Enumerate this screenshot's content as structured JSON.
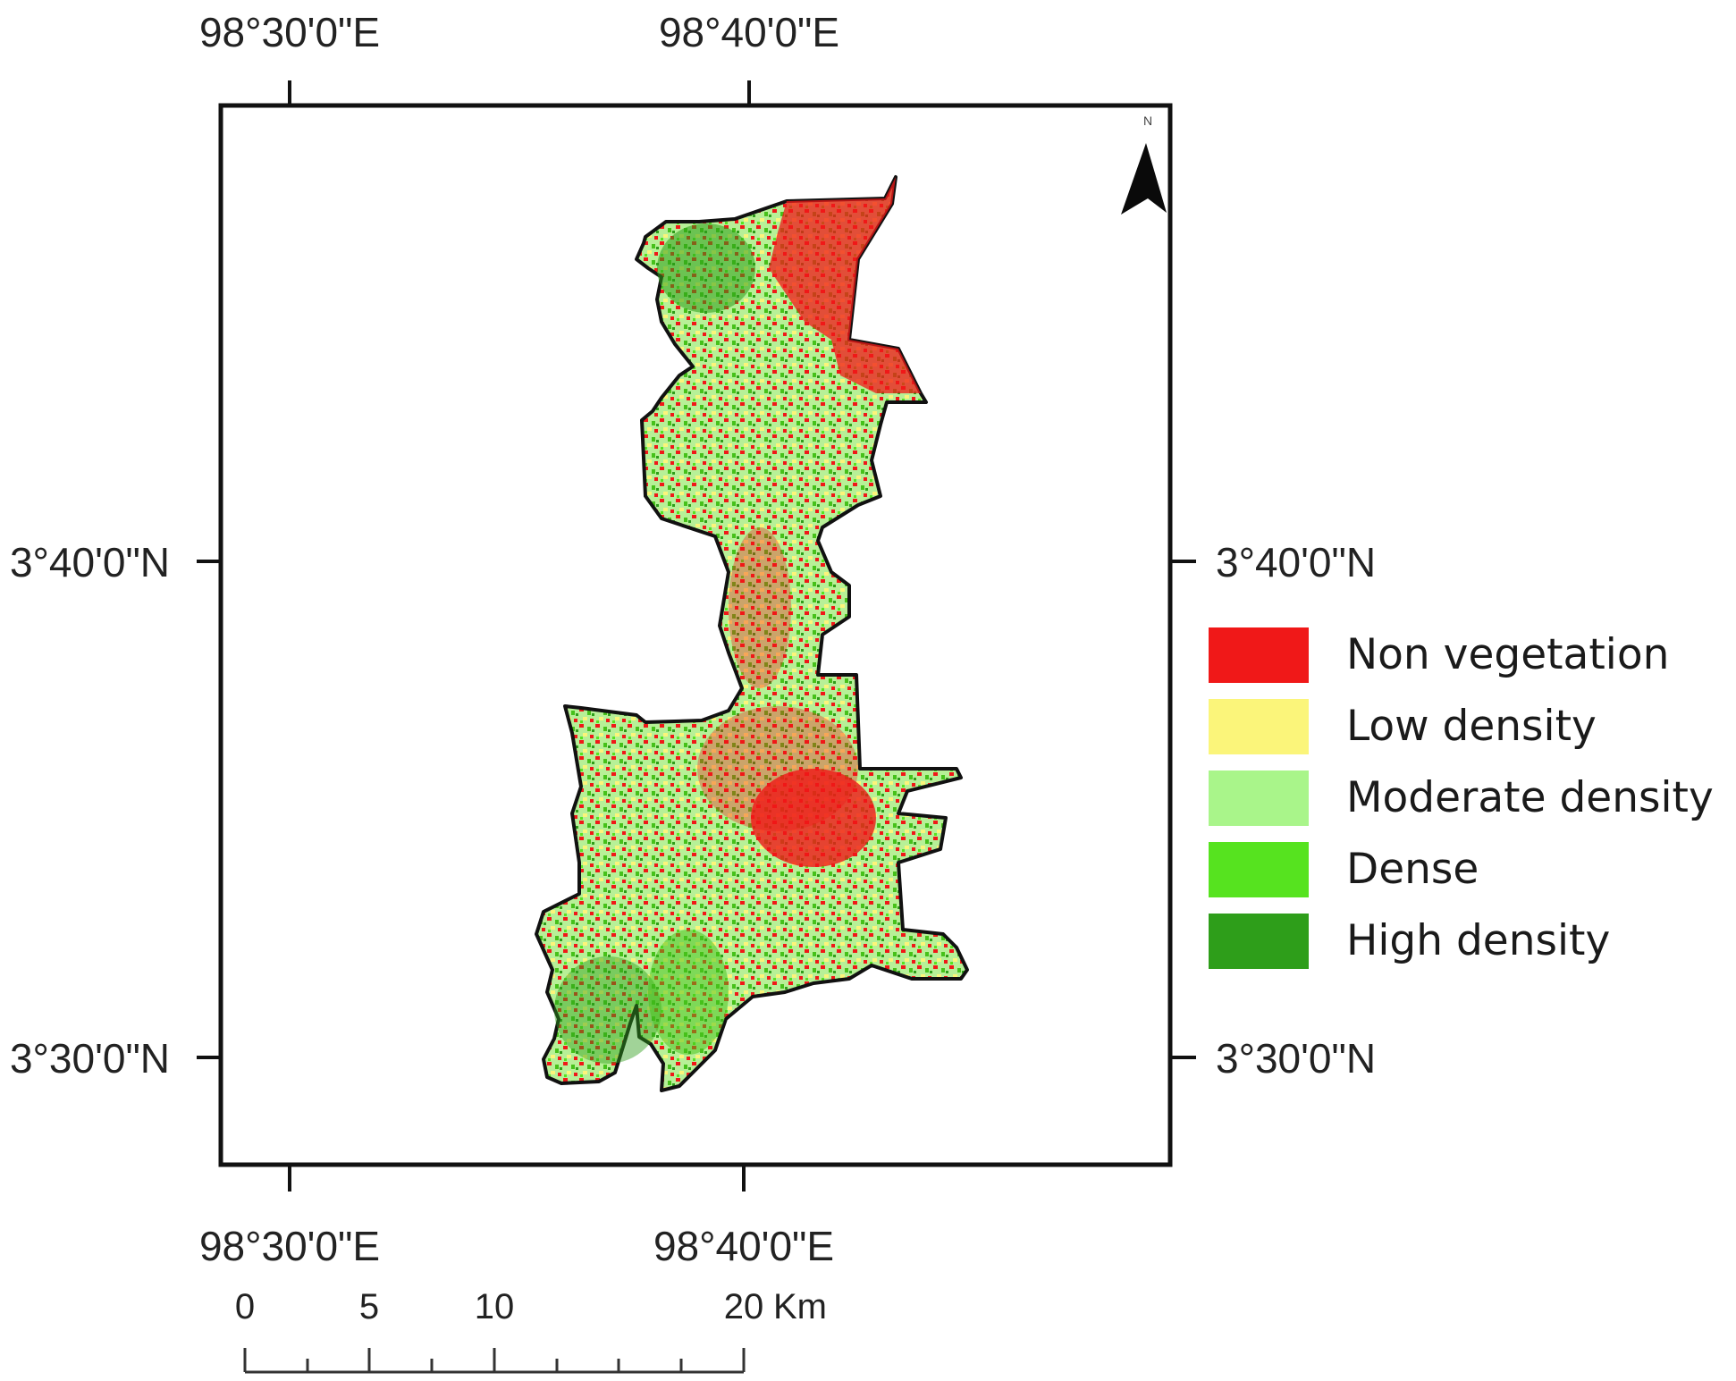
{
  "map": {
    "top_labels": [
      "98°30'0\"E",
      "98°40'0\"E"
    ],
    "bottom_labels": [
      "98°30'0\"E",
      "98°40'0\"E"
    ],
    "left_labels": [
      "3°40'0\"N",
      "3°30'0\"N"
    ],
    "right_labels": [
      "3°40'0\"N",
      "3°30'0\"N"
    ],
    "north_arrow": {
      "icon": "north-arrow-icon",
      "label": "N"
    }
  },
  "legend": {
    "items": [
      {
        "label": "Non vegetation",
        "color": "#f01818"
      },
      {
        "label": "Low density",
        "color": "#fbf57a"
      },
      {
        "label": "Moderate density",
        "color": "#a9f58a"
      },
      {
        "label": "Dense",
        "color": "#56e31f"
      },
      {
        "label": "High density",
        "color": "#2e9e1a"
      }
    ]
  },
  "scale_bar": {
    "ticks": [
      "0",
      "5",
      "10",
      "20"
    ],
    "unit": "Km"
  }
}
